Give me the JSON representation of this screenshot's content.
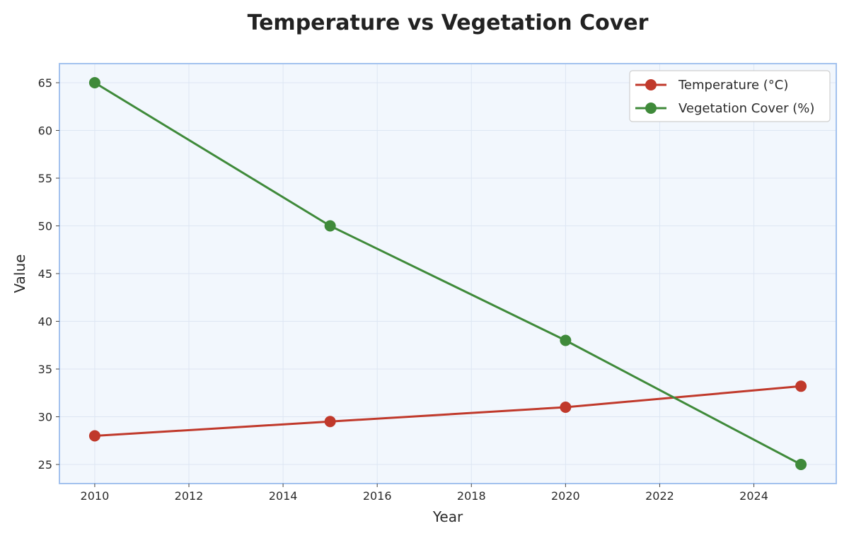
{
  "chart_data": {
    "type": "line",
    "title": "Temperature vs Vegetation Cover",
    "xlabel": "Year",
    "ylabel": "Value",
    "x": [
      2010,
      2015,
      2020,
      2025
    ],
    "xlim": [
      2009.25,
      2025.75
    ],
    "ylim": [
      23,
      67
    ],
    "xticks": [
      2010,
      2012,
      2014,
      2016,
      2018,
      2020,
      2022,
      2024
    ],
    "yticks": [
      25,
      30,
      35,
      40,
      45,
      50,
      55,
      60,
      65
    ],
    "grid": true,
    "legend_position": "top-right",
    "series": [
      {
        "name": "Temperature (°C)",
        "values": [
          28.0,
          29.5,
          31.0,
          33.2
        ],
        "color": "#c0392b"
      },
      {
        "name": "Vegetation Cover (%)",
        "values": [
          65,
          50,
          38,
          25
        ],
        "color": "#3f8a3a"
      }
    ]
  },
  "colors": {
    "plot_background": "#f2f7fd",
    "plot_border": "#a3c2ee",
    "grid": "#dde6f3"
  }
}
